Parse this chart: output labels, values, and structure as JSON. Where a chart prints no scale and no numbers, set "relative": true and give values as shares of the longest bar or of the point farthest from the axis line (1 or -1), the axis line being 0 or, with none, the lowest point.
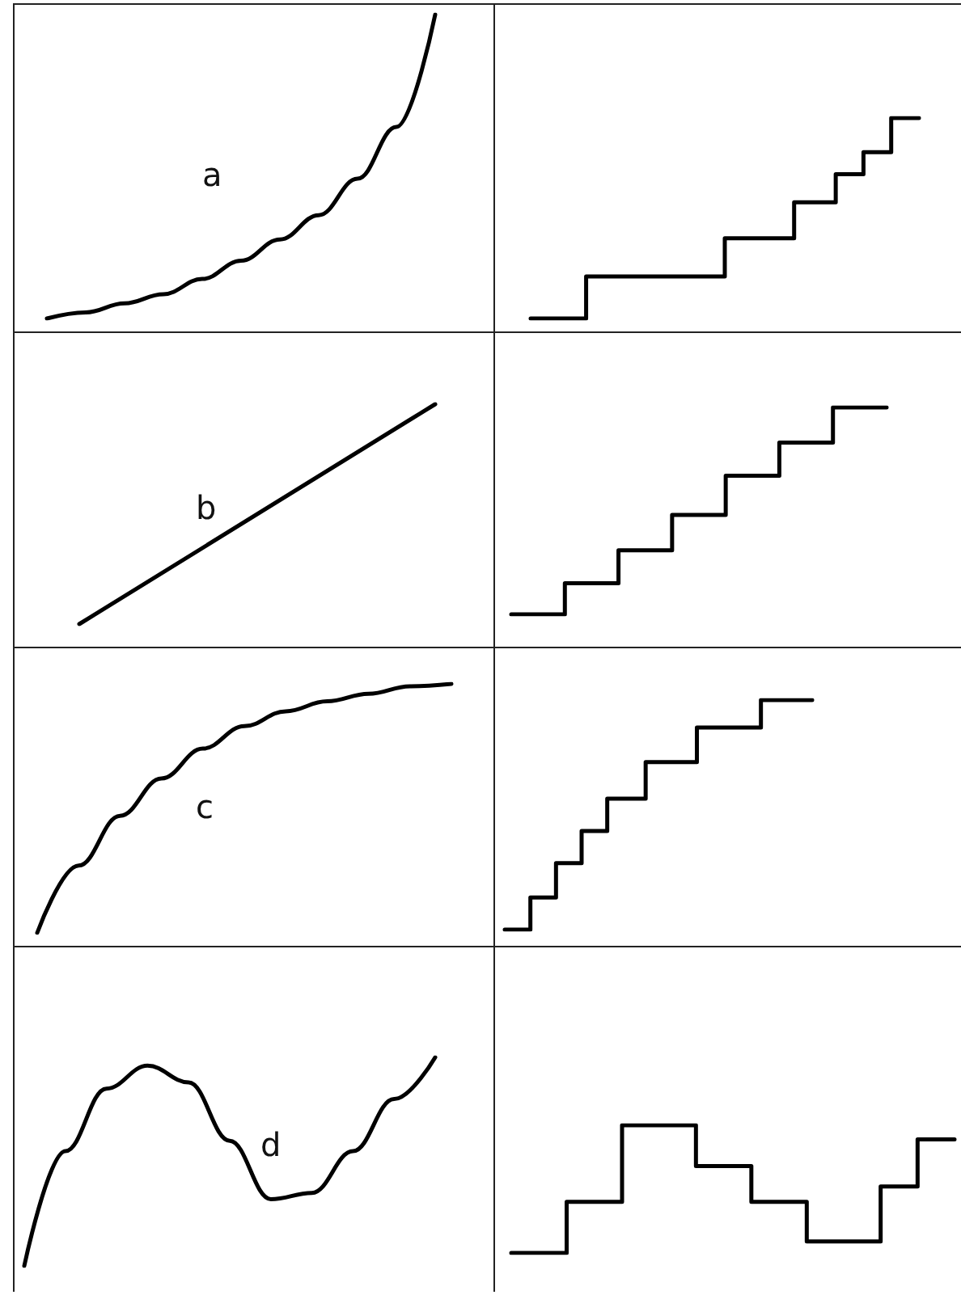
{
  "chart_data": [
    {
      "type": "line",
      "relative": true,
      "categories": [
        null,
        null,
        null,
        null,
        null,
        null,
        null,
        null,
        null,
        null,
        null
      ],
      "values": [
        0,
        0.02,
        0.05,
        0.08,
        0.13,
        0.19,
        0.26,
        0.34,
        0.46,
        0.63,
        1
      ],
      "color": "#000000",
      "annotations": [
        "a"
      ]
    },
    {
      "type": "step",
      "relative": true,
      "categories": [
        null,
        null,
        null,
        null,
        null,
        null,
        null,
        null,
        null,
        null,
        null,
        null,
        null,
        null,
        null,
        null,
        null,
        null,
        null,
        null,
        null,
        null,
        null,
        null,
        null,
        null,
        null,
        null,
        null
      ],
      "values": [
        0,
        0,
        0,
        0,
        0.21,
        0.21,
        0.21,
        0.21,
        0.21,
        0.21,
        0.21,
        0.21,
        0.21,
        0.21,
        0.4,
        0.4,
        0.4,
        0.4,
        0.4,
        0.58,
        0.58,
        0.58,
        0.72,
        0.72,
        0.83,
        0.83,
        1,
        1,
        1
      ],
      "color": "#000000"
    },
    {
      "type": "line",
      "relative": true,
      "categories": [
        null,
        null
      ],
      "values": [
        0,
        1
      ],
      "color": "#000000",
      "annotations": [
        "b"
      ]
    },
    {
      "type": "step",
      "relative": true,
      "categories": [
        null,
        null,
        null,
        null,
        null,
        null,
        null,
        null
      ],
      "values": [
        0,
        0.15,
        0.31,
        0.48,
        0.67,
        0.83,
        1,
        1
      ],
      "color": "#000000"
    },
    {
      "type": "line",
      "relative": true,
      "categories": [
        null,
        null,
        null,
        null,
        null,
        null,
        null,
        null,
        null,
        null,
        null
      ],
      "values": [
        0,
        0.27,
        0.47,
        0.62,
        0.74,
        0.83,
        0.89,
        0.93,
        0.96,
        0.99,
        1
      ],
      "color": "#000000",
      "annotations": [
        "c"
      ]
    },
    {
      "type": "step",
      "relative": true,
      "categories": [
        null,
        null,
        null,
        null,
        null,
        null,
        null,
        null,
        null,
        null,
        null,
        null,
        null,
        null,
        null,
        null,
        null,
        null,
        null,
        null,
        null,
        null,
        null,
        null,
        null
      ],
      "values": [
        0,
        0,
        0.14,
        0.14,
        0.29,
        0.29,
        0.43,
        0.43,
        0.57,
        0.57,
        0.57,
        0.73,
        0.73,
        0.73,
        0.73,
        0.88,
        0.88,
        0.88,
        0.88,
        0.88,
        1,
        1,
        1,
        1,
        1
      ],
      "color": "#000000"
    },
    {
      "type": "line",
      "relative": true,
      "categories": [
        null,
        null,
        null,
        null,
        null,
        null,
        null,
        null,
        null,
        null,
        null
      ],
      "values": [
        0,
        0.55,
        0.85,
        0.96,
        0.88,
        0.6,
        0.32,
        0.35,
        0.55,
        0.8,
        1
      ],
      "color": "#000000",
      "annotations": [
        "d"
      ]
    },
    {
      "type": "step",
      "relative": true,
      "categories": [
        null,
        null,
        null,
        null,
        null,
        null,
        null,
        null,
        null,
        null,
        null,
        null,
        null,
        null,
        null,
        null,
        null,
        null,
        null,
        null,
        null,
        null,
        null,
        null,
        null
      ],
      "values": [
        0,
        0,
        0,
        0.4,
        0.4,
        0.4,
        1,
        1,
        1,
        1,
        0.68,
        0.68,
        0.68,
        0.4,
        0.4,
        0.4,
        0.09,
        0.09,
        0.09,
        0.09,
        0.52,
        0.52,
        0.89,
        0.89,
        0.89
      ],
      "color": "#000000"
    }
  ]
}
